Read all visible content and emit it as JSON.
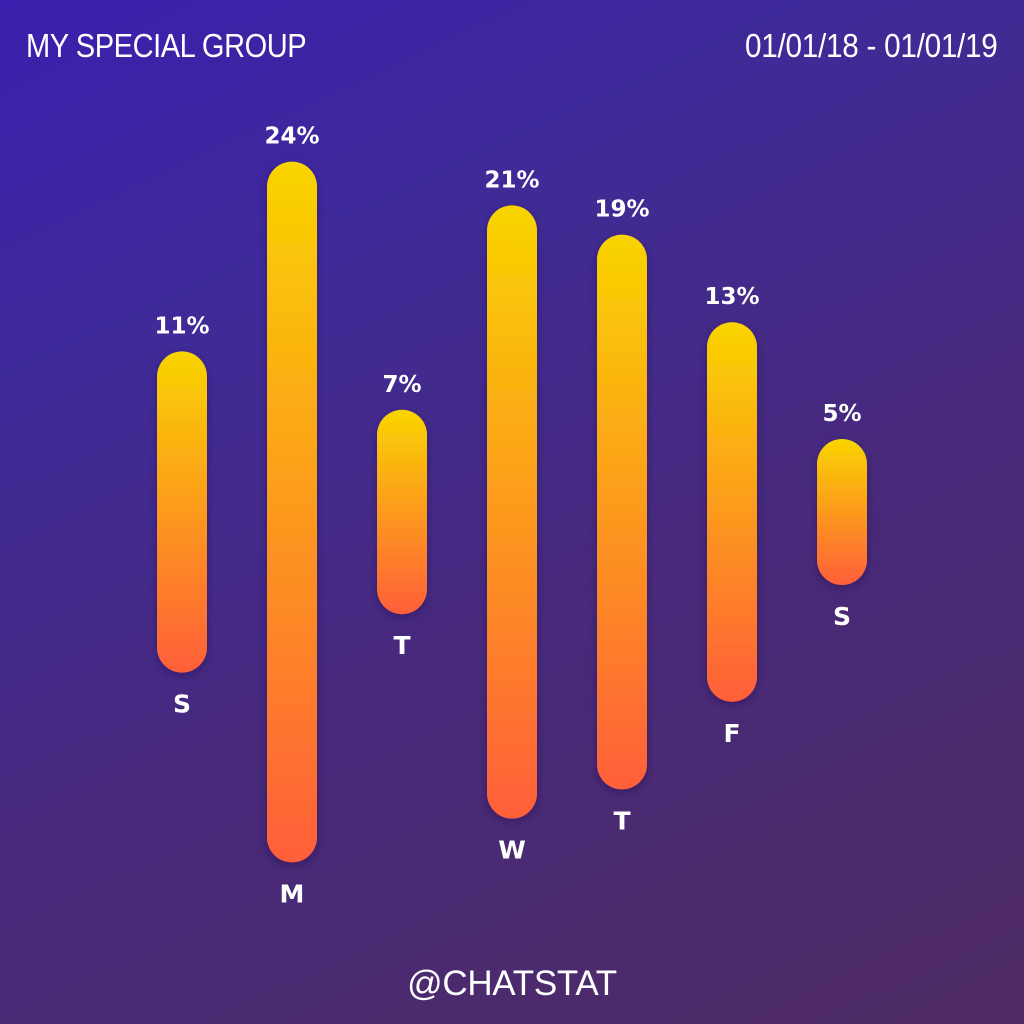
{
  "header": {
    "title": "MY SPECIAL GROUP",
    "date_range": "01/01/18 - 01/01/19"
  },
  "footer": {
    "handle": "@CHATSTAT"
  },
  "colors": {
    "bar_top": "#f9d400",
    "bar_bottom": "#ff5f3a"
  },
  "chart_data": {
    "type": "bar",
    "categories": [
      "S",
      "M",
      "T",
      "W",
      "T",
      "F",
      "S"
    ],
    "values": [
      11,
      24,
      7,
      21,
      19,
      13,
      5
    ],
    "value_labels": [
      "11%",
      "24%",
      "7%",
      "21%",
      "19%",
      "13%",
      "5%"
    ],
    "unit": "%"
  }
}
